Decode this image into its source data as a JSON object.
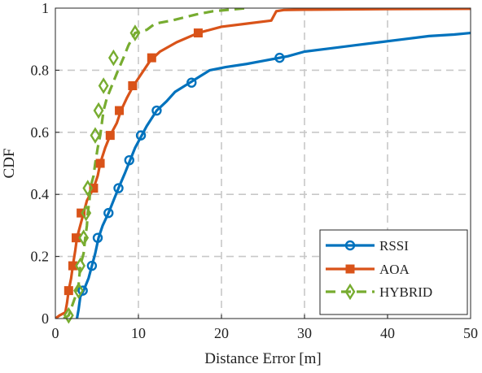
{
  "chart_data": {
    "type": "line",
    "title": "",
    "xlabel": "Distance Error [m]",
    "ylabel": "CDF",
    "xlim": [
      0,
      50
    ],
    "ylim": [
      0,
      1
    ],
    "xticks": [
      "0",
      "10",
      "20",
      "30",
      "40",
      "50"
    ],
    "yticks": [
      "0",
      "0.2",
      "0.4",
      "0.6",
      "0.8",
      "1"
    ],
    "grid": true,
    "grid_style": "dashed",
    "legend_position": "bottom-right",
    "series": [
      {
        "name": "RSSI",
        "color": "#0072BD",
        "line_style": "solid",
        "marker": "circle",
        "line": [
          [
            2.6,
            0
          ],
          [
            2.8,
            0.03
          ],
          [
            3.0,
            0.07
          ],
          [
            3.4,
            0.09
          ],
          [
            4.0,
            0.13
          ],
          [
            4.4,
            0.17
          ],
          [
            4.8,
            0.21
          ],
          [
            5.2,
            0.26
          ],
          [
            5.7,
            0.3
          ],
          [
            6.4,
            0.34
          ],
          [
            7.0,
            0.38
          ],
          [
            7.6,
            0.42
          ],
          [
            8.4,
            0.47
          ],
          [
            9.0,
            0.51
          ],
          [
            9.6,
            0.55
          ],
          [
            10.4,
            0.59
          ],
          [
            11.0,
            0.62
          ],
          [
            12.2,
            0.67
          ],
          [
            13.4,
            0.7
          ],
          [
            14.4,
            0.73
          ],
          [
            16.2,
            0.76
          ],
          [
            17.4,
            0.78
          ],
          [
            18.6,
            0.8
          ],
          [
            20.5,
            0.81
          ],
          [
            23.0,
            0.82
          ],
          [
            25.0,
            0.83
          ],
          [
            27.0,
            0.84
          ],
          [
            28.0,
            0.845
          ],
          [
            30.0,
            0.86
          ],
          [
            33.0,
            0.87
          ],
          [
            36.0,
            0.88
          ],
          [
            39.0,
            0.89
          ],
          [
            42.0,
            0.9
          ],
          [
            45.0,
            0.91
          ],
          [
            48.0,
            0.915
          ],
          [
            50.0,
            0.92
          ]
        ],
        "markers": [
          [
            3.3,
            0.09
          ],
          [
            4.4,
            0.17
          ],
          [
            5.1,
            0.26
          ],
          [
            6.4,
            0.34
          ],
          [
            7.6,
            0.42
          ],
          [
            8.9,
            0.51
          ],
          [
            10.3,
            0.59
          ],
          [
            12.2,
            0.67
          ],
          [
            16.4,
            0.76
          ],
          [
            27.0,
            0.84
          ]
        ]
      },
      {
        "name": "AOA",
        "color": "#D95319",
        "line_style": "solid",
        "marker": "square",
        "line": [
          [
            0,
            0
          ],
          [
            0.5,
            0.01
          ],
          [
            1.2,
            0.02
          ],
          [
            1.4,
            0.05
          ],
          [
            1.6,
            0.09
          ],
          [
            1.9,
            0.13
          ],
          [
            2.1,
            0.17
          ],
          [
            2.4,
            0.22
          ],
          [
            2.6,
            0.26
          ],
          [
            3.0,
            0.3
          ],
          [
            3.4,
            0.34
          ],
          [
            3.8,
            0.38
          ],
          [
            4.6,
            0.42
          ],
          [
            5.1,
            0.46
          ],
          [
            5.4,
            0.5
          ],
          [
            6.0,
            0.55
          ],
          [
            6.6,
            0.59
          ],
          [
            7.4,
            0.63
          ],
          [
            7.9,
            0.67
          ],
          [
            8.6,
            0.71
          ],
          [
            9.4,
            0.75
          ],
          [
            10.4,
            0.79
          ],
          [
            11.4,
            0.83
          ],
          [
            12.6,
            0.86
          ],
          [
            14.6,
            0.89
          ],
          [
            17.2,
            0.92
          ],
          [
            20.0,
            0.94
          ],
          [
            23.0,
            0.95
          ],
          [
            26.0,
            0.96
          ],
          [
            26.6,
            0.99
          ],
          [
            27.5,
            0.994
          ],
          [
            30.0,
            0.995
          ],
          [
            40.0,
            0.997
          ],
          [
            50.0,
            0.998
          ]
        ],
        "markers": [
          [
            1.6,
            0.09
          ],
          [
            2.1,
            0.17
          ],
          [
            2.5,
            0.26
          ],
          [
            3.1,
            0.34
          ],
          [
            4.6,
            0.42
          ],
          [
            5.4,
            0.5
          ],
          [
            6.6,
            0.59
          ],
          [
            7.7,
            0.67
          ],
          [
            9.3,
            0.75
          ],
          [
            11.6,
            0.84
          ],
          [
            17.2,
            0.92
          ]
        ]
      },
      {
        "name": "HYBRID",
        "color": "#77AC30",
        "line_style": "dashed",
        "marker": "diamond",
        "line": [
          [
            1.0,
            0
          ],
          [
            1.6,
            0.01
          ],
          [
            2.0,
            0.04
          ],
          [
            2.4,
            0.07
          ],
          [
            2.8,
            0.11
          ],
          [
            3.0,
            0.17
          ],
          [
            3.4,
            0.21
          ],
          [
            3.6,
            0.26
          ],
          [
            3.8,
            0.3
          ],
          [
            3.9,
            0.34
          ],
          [
            4.1,
            0.38
          ],
          [
            4.2,
            0.42
          ],
          [
            4.6,
            0.46
          ],
          [
            4.8,
            0.5
          ],
          [
            5.1,
            0.55
          ],
          [
            5.4,
            0.59
          ],
          [
            5.6,
            0.63
          ],
          [
            5.8,
            0.67
          ],
          [
            6.2,
            0.71
          ],
          [
            6.8,
            0.75
          ],
          [
            7.4,
            0.79
          ],
          [
            8.2,
            0.84
          ],
          [
            8.8,
            0.88
          ],
          [
            9.6,
            0.92
          ],
          [
            11.0,
            0.93
          ],
          [
            12.0,
            0.95
          ],
          [
            14.0,
            0.96
          ],
          [
            17.0,
            0.98
          ],
          [
            19.0,
            0.99
          ],
          [
            21.0,
            0.995
          ],
          [
            23.0,
            1.0
          ]
        ],
        "markers": [
          [
            1.6,
            0.01
          ],
          [
            2.8,
            0.09
          ],
          [
            3.0,
            0.17
          ],
          [
            3.4,
            0.26
          ],
          [
            3.7,
            0.34
          ],
          [
            3.9,
            0.42
          ],
          [
            4.8,
            0.59
          ],
          [
            5.2,
            0.67
          ],
          [
            5.8,
            0.75
          ],
          [
            7.0,
            0.84
          ],
          [
            9.6,
            0.92
          ]
        ]
      }
    ]
  }
}
